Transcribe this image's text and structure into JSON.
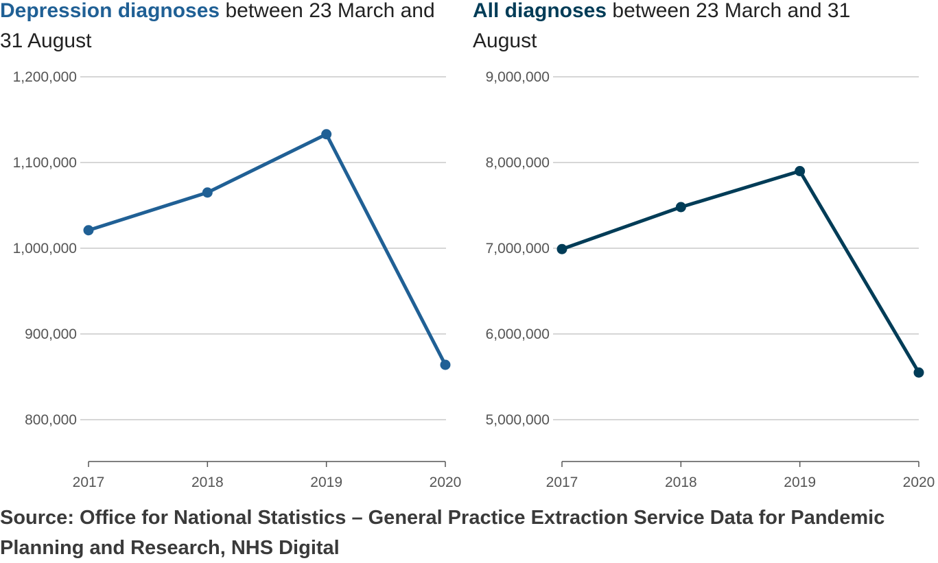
{
  "chart_data": [
    {
      "type": "line",
      "title_bold": "Depression diagnoses",
      "title_rest": " between 23 March and 31 August",
      "x": [
        "2017",
        "2018",
        "2019",
        "2020"
      ],
      "series": [
        {
          "values": [
            1021000,
            1065000,
            1133000,
            864000
          ],
          "color": "#206095"
        }
      ],
      "ylim": [
        800000,
        1200000
      ],
      "yticks": [
        800000,
        900000,
        1000000,
        1100000,
        1200000
      ],
      "ytick_labels": [
        "800,000",
        "900,000",
        "1,000,000",
        "1,100,000",
        "1,200,000"
      ],
      "grid": true
    },
    {
      "type": "line",
      "title_bold": "All diagnoses",
      "title_rest": " between 23 March and 31 August",
      "x": [
        "2017",
        "2018",
        "2019",
        "2020"
      ],
      "series": [
        {
          "values": [
            6990000,
            7480000,
            7900000,
            5550000
          ],
          "color": "#003c57"
        }
      ],
      "ylim": [
        5000000,
        9000000
      ],
      "yticks": [
        5000000,
        6000000,
        7000000,
        8000000,
        9000000
      ],
      "ytick_labels": [
        "5,000,000",
        "6,000,000",
        "7,000,000",
        "8,000,000",
        "9,000,000"
      ],
      "grid": true
    }
  ],
  "source": "Source: Office for National Statistics – General Practice Extraction Service Data for Pandemic Planning and Research, NHS Digital"
}
